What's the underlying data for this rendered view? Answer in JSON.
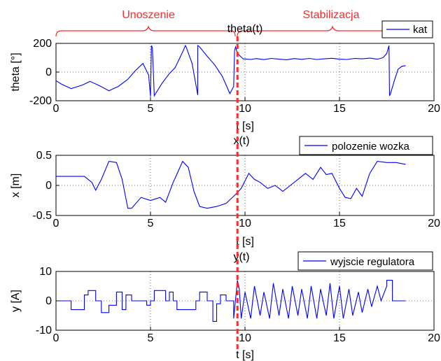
{
  "phases": {
    "swing_up": "Unoszenie",
    "stabilization": "Stabilizacja",
    "color": "#ff2a2a",
    "switch_time": 9.6
  },
  "chart_data": [
    {
      "type": "line",
      "title": "theta(t)",
      "xlabel": "t [s]",
      "ylabel": "theta [°]",
      "xlim": [
        0,
        20
      ],
      "ylim": [
        -200,
        200
      ],
      "xticks": [
        "0",
        "5",
        "10",
        "15",
        "20"
      ],
      "yticks": [
        "-200",
        "0",
        "200"
      ],
      "grid": true,
      "legend_position": "top-right",
      "series": [
        {
          "name": "kat",
          "color": "#0000ff",
          "x": [
            0,
            0.3,
            0.8,
            1.4,
            1.8,
            2.3,
            2.8,
            3.3,
            3.8,
            4.2,
            4.6,
            4.9,
            5.0,
            5.05,
            5.1,
            5.2,
            5.6,
            6.0,
            6.3,
            6.7,
            6.85,
            6.9,
            7.2,
            7.5,
            7.5,
            7.6,
            8.0,
            8.4,
            8.8,
            9.2,
            9.4,
            9.45,
            9.5,
            9.6,
            9.9,
            10.3,
            10.6,
            11.0,
            11.4,
            11.8,
            12.2,
            12.6,
            13.0,
            13.4,
            13.8,
            14.2,
            14.6,
            15.0,
            15.4,
            15.8,
            16.2,
            16.6,
            17.0,
            17.3,
            17.5,
            17.62,
            17.65,
            17.7,
            17.9,
            18.1,
            18.3,
            18.5
          ],
          "values": [
            -60,
            -85,
            -115,
            -90,
            -65,
            -95,
            -130,
            -100,
            -50,
            10,
            60,
            -20,
            -170,
            185,
            170,
            -165,
            -80,
            -10,
            30,
            140,
            185,
            170,
            60,
            -160,
            185,
            175,
            110,
            50,
            -30,
            -150,
            -100,
            150,
            175,
            130,
            92,
            88,
            94,
            87,
            95,
            90,
            86,
            94,
            89,
            95,
            88,
            92,
            96,
            90,
            88,
            95,
            92,
            97,
            90,
            100,
            130,
            185,
            -165,
            -150,
            -60,
            20,
            40,
            45
          ]
        }
      ]
    },
    {
      "type": "line",
      "title": "x(t)",
      "xlabel": "t [s]",
      "ylabel": "x [m]",
      "xlim": [
        0,
        20
      ],
      "ylim": [
        -0.5,
        0.5
      ],
      "xticks": [
        "0",
        "5",
        "10",
        "15",
        "20"
      ],
      "yticks": [
        "-0.5",
        "0",
        "0.5"
      ],
      "grid": true,
      "legend_position": "top-right",
      "series": [
        {
          "name": "polozenie wozka",
          "color": "#0000ff",
          "x": [
            0,
            1.5,
            1.9,
            2.1,
            2.4,
            2.8,
            3.2,
            3.5,
            3.8,
            4.0,
            4.5,
            5.0,
            5.5,
            5.8,
            6.2,
            6.7,
            7.0,
            7.3,
            7.6,
            8.0,
            8.5,
            9.0,
            9.5,
            9.8,
            10.2,
            10.5,
            10.8,
            11.2,
            11.6,
            12.0,
            12.4,
            12.8,
            13.2,
            13.6,
            14.0,
            14.3,
            14.6,
            15.0,
            15.3,
            15.6,
            15.9,
            16.2,
            16.6,
            17.0,
            17.5,
            18.0,
            18.5
          ],
          "values": [
            0.15,
            0.15,
            0.05,
            -0.08,
            0.1,
            0.4,
            0.38,
            0.1,
            -0.38,
            -0.38,
            -0.2,
            -0.25,
            -0.2,
            -0.28,
            0.05,
            0.4,
            0.3,
            -0.1,
            -0.35,
            -0.38,
            -0.35,
            -0.3,
            -0.15,
            -0.05,
            0.2,
            0.1,
            0.05,
            -0.05,
            0.0,
            -0.1,
            0.0,
            0.1,
            0.2,
            0.1,
            0.3,
            0.18,
            0.2,
            -0.05,
            -0.2,
            -0.22,
            -0.05,
            -0.18,
            0.2,
            0.4,
            0.38,
            0.38,
            0.35
          ]
        }
      ]
    },
    {
      "type": "line",
      "title": "y(t)",
      "xlabel": "t [s]",
      "ylabel": "y [A]",
      "xlim": [
        0,
        20
      ],
      "ylim": [
        -10,
        10
      ],
      "xticks": [
        "0",
        "5",
        "10",
        "15",
        "20"
      ],
      "yticks": [
        "-10",
        "0",
        "10"
      ],
      "grid": true,
      "legend_position": "top-right",
      "series": [
        {
          "name": "wyjscie regulatora",
          "color": "#0000ff",
          "x": [
            0,
            0.8,
            0.8,
            1.5,
            1.5,
            1.7,
            1.7,
            2.1,
            2.1,
            2.4,
            2.4,
            2.8,
            2.8,
            3.2,
            3.2,
            3.5,
            3.5,
            3.7,
            3.7,
            4.0,
            4.0,
            4.8,
            4.8,
            5.0,
            5.0,
            5.2,
            5.2,
            5.8,
            5.8,
            6.0,
            6.0,
            6.2,
            6.2,
            6.4,
            6.4,
            7.4,
            7.4,
            7.6,
            7.6,
            8.0,
            8.0,
            8.3,
            8.3,
            8.5,
            8.5,
            8.7,
            8.7,
            9.0,
            9.0,
            9.4,
            9.4,
            9.6,
            9.7,
            9.8,
            10.0,
            10.3,
            10.5,
            10.8,
            11.0,
            11.3,
            11.5,
            11.8,
            12.0,
            12.3,
            12.5,
            12.8,
            13.0,
            13.3,
            13.5,
            13.8,
            14.0,
            14.3,
            14.5,
            14.7,
            15.0,
            15.2,
            15.5,
            15.7,
            16.0,
            16.2,
            16.5,
            16.7,
            17.0,
            17.2,
            17.5,
            17.5,
            17.8,
            17.8,
            18.3,
            18.3,
            18.5
          ],
          "values": [
            0,
            0,
            -3,
            -3,
            2,
            2,
            3.5,
            3.5,
            0,
            0,
            -4,
            -4,
            -1.5,
            -1.5,
            3,
            3,
            -3,
            -3,
            2,
            2,
            0,
            0,
            -1.5,
            -1.5,
            0,
            0,
            3.5,
            3.5,
            0,
            0,
            3,
            3,
            0,
            0,
            -3,
            -3,
            0,
            0,
            3,
            3,
            0,
            0,
            -7,
            -7,
            -1,
            -1,
            2,
            2,
            0,
            0,
            -6,
            7,
            4,
            -6,
            3,
            -6,
            5,
            -5,
            3,
            -6,
            6,
            -5,
            4,
            -6,
            5,
            -5,
            4,
            -6,
            5,
            -6,
            4,
            -5,
            6,
            -6,
            5,
            -6,
            4,
            -5,
            3,
            -4,
            4,
            -2,
            5,
            0,
            5,
            7,
            7,
            0,
            0,
            0,
            0
          ]
        }
      ]
    }
  ]
}
